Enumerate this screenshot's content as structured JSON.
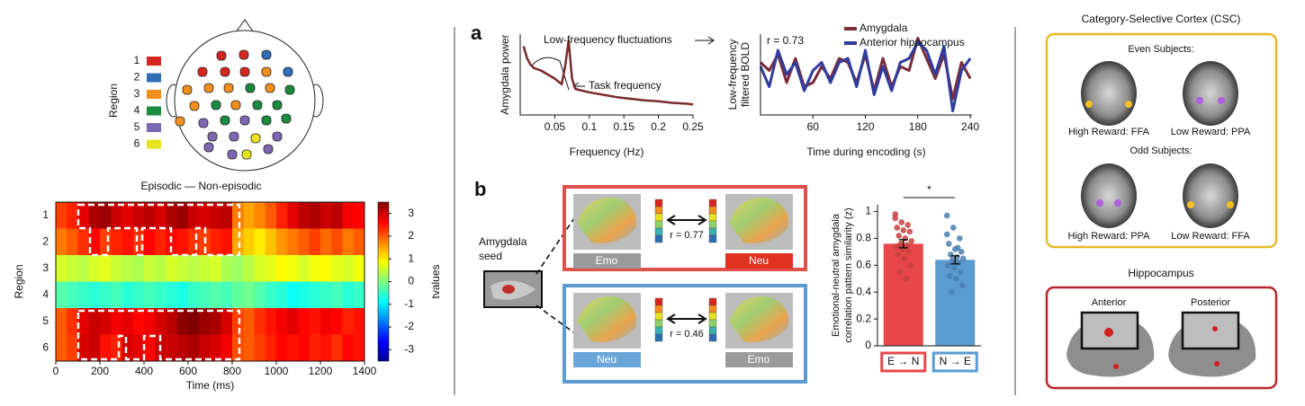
{
  "panel_labels": [
    "a",
    "b"
  ],
  "head_legend": {
    "title": "Region",
    "labels": [
      "1",
      "2",
      "3",
      "4",
      "5",
      "6"
    ],
    "colors": [
      "#d7261e",
      "#2e6db4",
      "#f28e1c",
      "#1a8a3e",
      "#7b68b0",
      "#e8e424"
    ]
  },
  "seed_panel": {
    "label": [
      "Amygdala",
      "seed"
    ]
  },
  "pattern_boxes": [
    {
      "left": "Emo",
      "right": "Neu",
      "r": "r = 0.77"
    },
    {
      "left": "Neu",
      "right": "Emo",
      "r": "r = 0.46"
    }
  ],
  "csc": {
    "title": "Category-Selective Cortex (CSC)",
    "even": "Even Subjects:",
    "odd": "Odd Subjects:",
    "labels": [
      "High Reward: FFA",
      "Low Reward: PPA",
      "High Reward: PPA",
      "Low Reward: FFA"
    ]
  },
  "hippocampus": {
    "title": "Hippocampus",
    "labels": [
      "Anterior",
      "Posterior"
    ]
  },
  "chart_data": [
    {
      "type": "heatmap",
      "title": "Episodic — Non-episodic",
      "x_label": "Time (ms)",
      "y_label": "Region",
      "categories": [
        "1",
        "2",
        "3",
        "4",
        "5",
        "6"
      ],
      "x": [
        25,
        75,
        125,
        175,
        225,
        275,
        325,
        375,
        425,
        475,
        525,
        575,
        625,
        675,
        725,
        775,
        825,
        875,
        925,
        975,
        1025,
        1075,
        1125,
        1175,
        1225,
        1275,
        1325,
        1375
      ],
      "z": [
        [
          2.2,
          2.4,
          2.8,
          3.2,
          3.3,
          3.0,
          2.8,
          3.0,
          3.1,
          2.9,
          3.2,
          3.3,
          3.0,
          2.9,
          3.0,
          3.1,
          1.8,
          1.5,
          1.7,
          2.0,
          2.4,
          2.8,
          3.1,
          3.2,
          3.0,
          3.1,
          2.7,
          2.6
        ],
        [
          1.8,
          2.0,
          2.3,
          2.6,
          2.2,
          2.4,
          2.5,
          2.3,
          2.6,
          2.4,
          2.6,
          2.5,
          2.3,
          2.2,
          2.4,
          2.5,
          1.5,
          1.2,
          1.0,
          1.3,
          1.6,
          1.8,
          2.0,
          2.2,
          1.9,
          2.1,
          1.8,
          2.0
        ],
        [
          0.6,
          0.5,
          0.4,
          0.6,
          0.7,
          0.5,
          0.4,
          0.3,
          0.5,
          0.4,
          0.6,
          0.5,
          0.4,
          0.5,
          0.6,
          0.3,
          0.2,
          0.4,
          0.6,
          0.7,
          0.9,
          0.8,
          0.6,
          0.8,
          0.9,
          0.7,
          0.6,
          0.8
        ],
        [
          -0.3,
          -0.4,
          -0.5,
          -0.6,
          -0.5,
          -0.4,
          -0.6,
          -0.5,
          -0.4,
          -0.5,
          -0.6,
          -0.7,
          -0.5,
          -0.4,
          -0.3,
          -0.4,
          -0.2,
          -0.1,
          -0.3,
          -0.5,
          -0.6,
          -0.8,
          -0.7,
          -0.6,
          -0.5,
          -0.4,
          -0.6,
          -0.5
        ],
        [
          2.0,
          2.3,
          2.8,
          3.0,
          2.9,
          2.7,
          2.8,
          2.6,
          2.7,
          2.9,
          3.1,
          3.4,
          3.5,
          3.3,
          3.2,
          2.9,
          2.2,
          2.0,
          2.3,
          2.5,
          2.7,
          2.8,
          2.6,
          2.5,
          2.7,
          2.6,
          2.4,
          2.5
        ],
        [
          2.0,
          2.2,
          2.9,
          3.0,
          2.5,
          2.4,
          2.9,
          2.8,
          2.6,
          3.0,
          3.0,
          3.1,
          3.2,
          3.0,
          2.9,
          2.7,
          2.1,
          2.0,
          2.2,
          2.4,
          2.6,
          2.5,
          2.6,
          2.4,
          2.5,
          2.3,
          2.6,
          2.5
        ]
      ],
      "xlim": [
        0,
        1400
      ],
      "xticks": [
        0,
        200,
        400,
        600,
        800,
        1000,
        1200,
        1400
      ],
      "colorbar": {
        "label": "tvalues",
        "clim": [
          -3.5,
          3.5
        ],
        "ticks": [
          3,
          2,
          1,
          0,
          -1,
          -2,
          -3
        ]
      }
    },
    {
      "type": "line",
      "x_label": "Frequency (Hz)",
      "y_label": "Amygdala power",
      "color": "#7a2a2a",
      "x": [
        0.005,
        0.01,
        0.015,
        0.02,
        0.03,
        0.04,
        0.05,
        0.06,
        0.065,
        0.07,
        0.075,
        0.08,
        0.09,
        0.1,
        0.12,
        0.14,
        0.16,
        0.18,
        0.2,
        0.22,
        0.24,
        0.25
      ],
      "values": [
        0.85,
        0.7,
        0.62,
        0.58,
        0.55,
        0.5,
        0.45,
        0.38,
        0.6,
        0.92,
        0.45,
        0.32,
        0.3,
        0.28,
        0.25,
        0.22,
        0.2,
        0.18,
        0.17,
        0.15,
        0.14,
        0.13
      ],
      "xlim": [
        0,
        0.25
      ],
      "ylim": [
        0,
        1
      ],
      "xticks": [
        0.05,
        0.1,
        0.15,
        0.2,
        0.25
      ],
      "annotations": [
        "Low-frequency fluctuations",
        "Task frequency"
      ]
    },
    {
      "type": "line",
      "x_label": "Time during encoding (s)",
      "y_label": [
        "Low-frequency",
        "filtered BOLD"
      ],
      "x": [
        0,
        10,
        20,
        30,
        40,
        50,
        60,
        70,
        80,
        90,
        100,
        110,
        120,
        130,
        140,
        150,
        160,
        170,
        180,
        190,
        200,
        210,
        220,
        230,
        240
      ],
      "series": [
        {
          "name": "Amygdala",
          "color": "#7b2d3a",
          "values": [
            0.3,
            0.1,
            0.5,
            -0.2,
            0.4,
            -0.3,
            -0.2,
            0.2,
            -0.1,
            0.4,
            0.3,
            -0.2,
            0.5,
            -0.4,
            0.4,
            -0.3,
            0.2,
            0.1,
            0.9,
            0.4,
            -0.1,
            0.5,
            -0.6,
            0.3,
            -0.1
          ]
        },
        {
          "name": "Anterior hippocampus",
          "color": "#2f3c9e",
          "values": [
            0.2,
            -0.3,
            0.6,
            0.0,
            0.3,
            -0.4,
            0.1,
            0.3,
            -0.2,
            0.3,
            0.4,
            -0.3,
            0.6,
            -0.5,
            0.2,
            -0.4,
            0.3,
            0.4,
            0.8,
            0.6,
            0.0,
            0.7,
            -0.9,
            0.1,
            0.4
          ]
        }
      ],
      "xlim": [
        0,
        242
      ],
      "ylim": [
        -1,
        1
      ],
      "xticks": [
        60,
        120,
        180,
        240
      ],
      "annotations": [
        "r = 0.73"
      ]
    },
    {
      "type": "bar",
      "y_label": [
        "Emotional-neutral amygdala",
        "correlation pattern similarity (z)"
      ],
      "categories": [
        "E → N",
        "N → E"
      ],
      "values": [
        0.76,
        0.64
      ],
      "errors": [
        0.03,
        0.03
      ],
      "colors": [
        "#e8474a",
        "#5b9bd0"
      ],
      "points": [
        [
          0.95,
          0.92,
          0.9,
          0.88,
          0.86,
          0.85,
          0.82,
          0.8,
          0.78,
          0.76,
          0.75,
          0.74,
          0.72,
          0.7,
          0.68,
          0.65,
          0.6,
          0.55,
          0.5,
          0.98
        ],
        [
          0.97,
          0.88,
          0.8,
          0.76,
          0.72,
          0.7,
          0.68,
          0.66,
          0.65,
          0.64,
          0.62,
          0.6,
          0.58,
          0.55,
          0.52,
          0.5,
          0.45,
          0.4,
          0.73,
          0.83
        ]
      ],
      "point_colors": [
        "#c4403e",
        "#4a7fb0"
      ],
      "ylim": [
        0,
        1.05
      ],
      "yticks": [
        0,
        0.2,
        0.4,
        0.6,
        0.8,
        1
      ],
      "annotations": [
        "*"
      ]
    }
  ]
}
